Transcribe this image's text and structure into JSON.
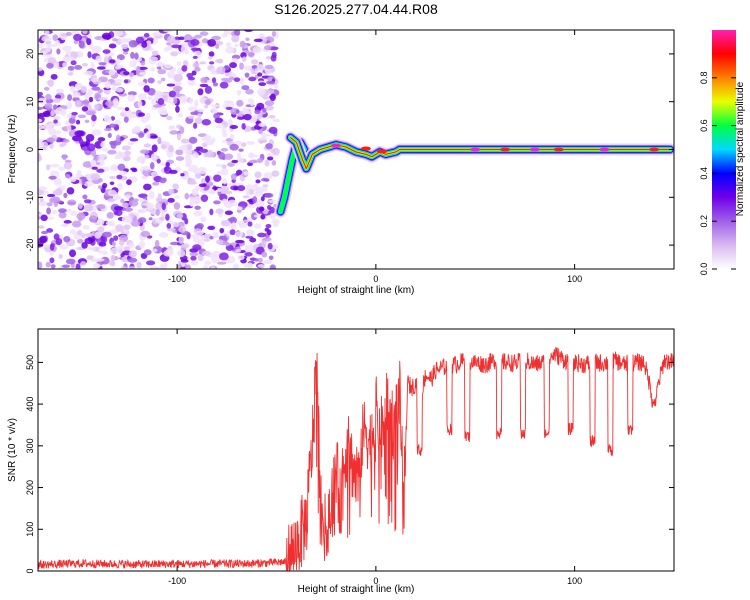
{
  "title": "S126.2025.277.04.44.R08",
  "chart_data": [
    {
      "type": "heatmap",
      "xlabel": "Height of straight line (km)",
      "ylabel": "Frequency (Hz)",
      "xlim": [
        -170,
        150
      ],
      "ylim": [
        -25,
        25
      ],
      "xticks": [
        -100,
        0,
        100
      ],
      "xtick_labels": [
        "-100",
        "0",
        "100"
      ],
      "yticks": [
        -20,
        -10,
        0,
        10,
        20
      ],
      "ytick_labels": [
        "-20",
        "-10",
        "0",
        "10",
        "20"
      ],
      "noise_region_x": [
        -170,
        -50
      ],
      "main_line": [
        {
          "x": -43,
          "y": 2.5
        },
        {
          "x": -40,
          "y": 1.5
        },
        {
          "x": -37,
          "y": -2
        },
        {
          "x": -35,
          "y": -4
        },
        {
          "x": -32,
          "y": -1
        },
        {
          "x": -28,
          "y": 0
        },
        {
          "x": -24,
          "y": 0.5
        },
        {
          "x": -20,
          "y": 1
        },
        {
          "x": -15,
          "y": 0.5
        },
        {
          "x": -10,
          "y": -0.5
        },
        {
          "x": -5,
          "y": -1
        },
        {
          "x": -2,
          "y": -1.5
        },
        {
          "x": 2,
          "y": -0.5
        },
        {
          "x": 5,
          "y": -1
        },
        {
          "x": 10,
          "y": -0.5
        },
        {
          "x": 12,
          "y": 0
        },
        {
          "x": 50,
          "y": 0
        },
        {
          "x": 100,
          "y": 0
        },
        {
          "x": 148,
          "y": 0
        }
      ],
      "branch_line": [
        {
          "x": -48,
          "y": -13
        },
        {
          "x": -46,
          "y": -10
        },
        {
          "x": -44,
          "y": -6
        },
        {
          "x": -42,
          "y": -2
        },
        {
          "x": -40,
          "y": 1
        },
        {
          "x": -38,
          "y": 1.5
        },
        {
          "x": -36,
          "y": 0
        }
      ],
      "hotspots": [
        {
          "x": -20,
          "y": 0.8,
          "level": 0.9
        },
        {
          "x": -5,
          "y": 0.2,
          "level": 0.75
        },
        {
          "x": 3,
          "y": -0.4,
          "level": 0.85
        },
        {
          "x": 50,
          "y": 0,
          "level": 0.95
        },
        {
          "x": 65,
          "y": 0,
          "level": 0.85
        },
        {
          "x": 80,
          "y": 0,
          "level": 0.95
        },
        {
          "x": 92,
          "y": 0,
          "level": 0.85
        },
        {
          "x": 115,
          "y": 0,
          "level": 0.9
        },
        {
          "x": 140,
          "y": 0,
          "level": 0.85
        }
      ],
      "colorbar": {
        "label": "Normalized spectral amplitude",
        "range": [
          0,
          1
        ],
        "ticks": [
          0.0,
          0.2,
          0.4,
          0.6,
          0.8
        ],
        "tick_labels": [
          "0.0",
          "0.2",
          "0.4",
          "0.6",
          "0.8"
        ],
        "colors": [
          "#ffffff",
          "#d9b8f0",
          "#a060e8",
          "#7000e8",
          "#0000ff",
          "#00d8ff",
          "#00ff40",
          "#e8ff00",
          "#ff8000",
          "#ff0000",
          "#ff20b0"
        ]
      }
    },
    {
      "type": "line",
      "xlabel": "Height of straight line (km)",
      "ylabel": "SNR (10 * v/v)",
      "xlim": [
        -170,
        150
      ],
      "ylim": [
        0,
        580
      ],
      "xticks": [
        -100,
        0,
        100
      ],
      "xtick_labels": [
        "-100",
        "0",
        "100"
      ],
      "yticks": [
        0,
        100,
        200,
        300,
        400,
        500
      ],
      "ytick_labels": [
        "0",
        "100",
        "200",
        "300",
        "400",
        "500"
      ],
      "series": [
        {
          "name": "SNR",
          "color": "#f03030",
          "x": [
            -170,
            -150,
            -120,
            -90,
            -60,
            -45,
            -40,
            -35,
            -32,
            -30,
            -28,
            -26,
            -25,
            -22,
            -20,
            -18,
            -15,
            -12,
            -10,
            -8,
            -5,
            -3,
            0,
            3,
            6,
            9,
            12,
            14,
            16,
            18,
            20,
            23,
            25,
            28,
            30,
            35,
            40,
            45,
            50,
            55,
            60,
            65,
            70,
            75,
            80,
            85,
            90,
            95,
            100,
            105,
            110,
            115,
            120,
            125,
            130,
            135,
            140,
            145,
            150
          ],
          "y": [
            15,
            18,
            16,
            17,
            18,
            22,
            60,
            120,
            300,
            520,
            200,
            90,
            110,
            180,
            250,
            160,
            300,
            260,
            220,
            280,
            350,
            300,
            380,
            330,
            400,
            350,
            420,
            150,
            450,
            440,
            450,
            430,
            470,
            460,
            480,
            490,
            495,
            505,
            500,
            495,
            505,
            500,
            498,
            505,
            495,
            500,
            520,
            505,
            500,
            495,
            500,
            498,
            505,
            495,
            500,
            500,
            405,
            505,
            500
          ]
        }
      ],
      "dropouts": [
        {
          "x": 22,
          "y": 290
        },
        {
          "x": 37,
          "y": 340
        },
        {
          "x": 46,
          "y": 320
        },
        {
          "x": 62,
          "y": 330
        },
        {
          "x": 74,
          "y": 330
        },
        {
          "x": 86,
          "y": 330
        },
        {
          "x": 98,
          "y": 340
        },
        {
          "x": 109,
          "y": 310
        },
        {
          "x": 118,
          "y": 290
        },
        {
          "x": 128,
          "y": 340
        },
        {
          "x": 140,
          "y": 405
        }
      ]
    }
  ]
}
